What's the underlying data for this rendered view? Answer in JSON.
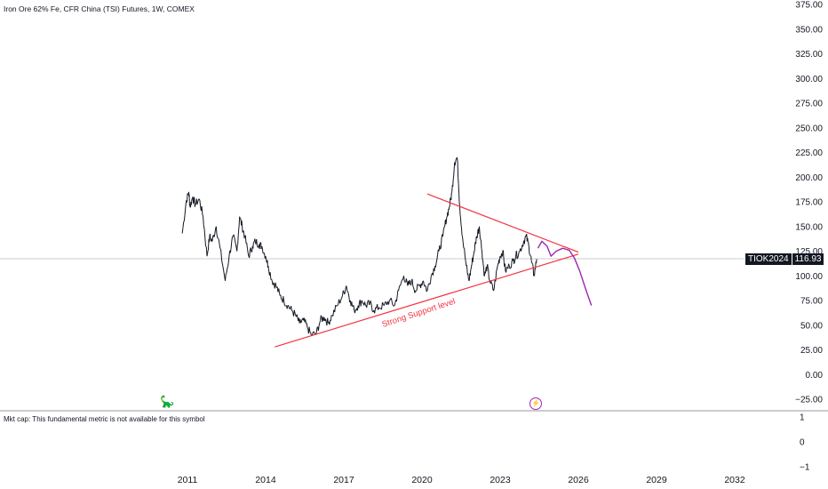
{
  "header": {
    "title": "Iron Ore 62% Fe, CFR China (TSI) Futures, 1W, COMEX"
  },
  "price_label": {
    "symbol": "TIOK2024",
    "value": "116.93"
  },
  "indicator": {
    "mktcap_text": "Mkt cap: This fundamental metric is not available for this symbol",
    "yticks": [
      "1",
      "0",
      "−1"
    ]
  },
  "icons": {
    "logo": "dinosaur-icon",
    "event": "lightning-icon"
  },
  "colors": {
    "price": "#131722",
    "trendline": "#f23645",
    "annotation_text": "#f23645",
    "projection": "#9c27b0",
    "grid": "#e0e3eb",
    "crosshair": "#9598a1"
  },
  "chart_data": {
    "type": "line",
    "title": "Iron Ore 62% Fe, CFR China (TSI) Futures, 1W, COMEX",
    "xlabel": "",
    "ylabel": "",
    "x_ticks": [
      "2011",
      "2014",
      "2017",
      "2020",
      "2023",
      "2026",
      "2029",
      "2032"
    ],
    "y_ticks": [
      "375.00",
      "350.00",
      "325.00",
      "300.00",
      "275.00",
      "250.00",
      "225.00",
      "200.00",
      "175.00",
      "150.00",
      "125.00",
      "100.00",
      "75.00",
      "50.00",
      "25.00",
      "0.00",
      "−25.00"
    ],
    "ylim": [
      -25,
      375
    ],
    "grid": false,
    "series": [
      {
        "x": [
          2010.8,
          2010.95,
          2011.05,
          2011.1,
          2011.2,
          2011.3,
          2011.45,
          2011.6,
          2011.75,
          2011.85,
          2011.95,
          2012.1,
          2012.25,
          2012.45,
          2012.6,
          2012.75,
          2012.9,
          2013.0,
          2013.1,
          2013.2,
          2013.35,
          2013.5,
          2013.6,
          2013.75,
          2013.85,
          2014.0,
          2014.1,
          2014.25,
          2014.4,
          2014.55,
          2014.7,
          2014.85,
          2015.0,
          2015.15,
          2015.3,
          2015.45,
          2015.6,
          2015.75,
          2015.95,
          2016.1,
          2016.25,
          2016.4,
          2016.55,
          2016.75,
          2016.95,
          2017.1,
          2017.25,
          2017.4,
          2017.55,
          2017.7,
          2017.85,
          2018.0,
          2018.15,
          2018.35,
          2018.55,
          2018.75,
          2018.95,
          2019.1,
          2019.3,
          2019.45,
          2019.6,
          2019.75,
          2019.9,
          2020.05,
          2020.2,
          2020.35,
          2020.5,
          2020.65,
          2020.8,
          2020.95,
          2021.05,
          2021.15,
          2021.25,
          2021.35,
          2021.45,
          2021.55,
          2021.7,
          2021.8,
          2021.9,
          2022.0,
          2022.1,
          2022.2,
          2022.3,
          2022.4,
          2022.5,
          2022.6,
          2022.75,
          2022.9,
          2023.0,
          2023.1,
          2023.2,
          2023.35,
          2023.5,
          2023.6,
          2023.75,
          2023.9,
          2024.0,
          2024.1,
          2024.2,
          2024.3,
          2024.4
        ],
        "y": [
          143,
          175,
          185,
          170,
          180,
          172,
          178,
          160,
          120,
          140,
          135,
          150,
          128,
          95,
          120,
          140,
          125,
          160,
          150,
          140,
          120,
          130,
          135,
          132,
          130,
          120,
          110,
          95,
          90,
          80,
          75,
          70,
          65,
          60,
          52,
          55,
          48,
          40,
          42,
          55,
          58,
          52,
          60,
          70,
          80,
          90,
          75,
          65,
          70,
          75,
          70,
          72,
          65,
          68,
          70,
          75,
          70,
          85,
          100,
          90,
          95,
          85,
          90,
          95,
          85,
          100,
          110,
          125,
          140,
          160,
          170,
          185,
          215,
          220,
          170,
          140,
          110,
          95,
          110,
          125,
          140,
          150,
          125,
          100,
          110,
          95,
          85,
          110,
          120,
          125,
          105,
          110,
          115,
          120,
          125,
          135,
          140,
          130,
          115,
          100,
          117
        ]
      }
    ],
    "trendlines": [
      {
        "x": [
          2014.35,
          2026.0
        ],
        "y": [
          28,
          122
        ]
      },
      {
        "x": [
          2020.2,
          2026.0
        ],
        "y": [
          183,
          124
        ]
      }
    ],
    "projection": {
      "x": [
        2024.45,
        2024.6,
        2024.8,
        2024.95,
        2025.15,
        2025.4,
        2025.65,
        2025.85,
        2026.05,
        2026.3,
        2026.5
      ],
      "y": [
        128,
        135,
        130,
        120,
        125,
        128,
        126,
        118,
        105,
        85,
        70
      ]
    },
    "current_price": 116.93,
    "annotations": [
      {
        "text": "Strong Support level",
        "x": 2019.9,
        "y": 60
      }
    ]
  }
}
